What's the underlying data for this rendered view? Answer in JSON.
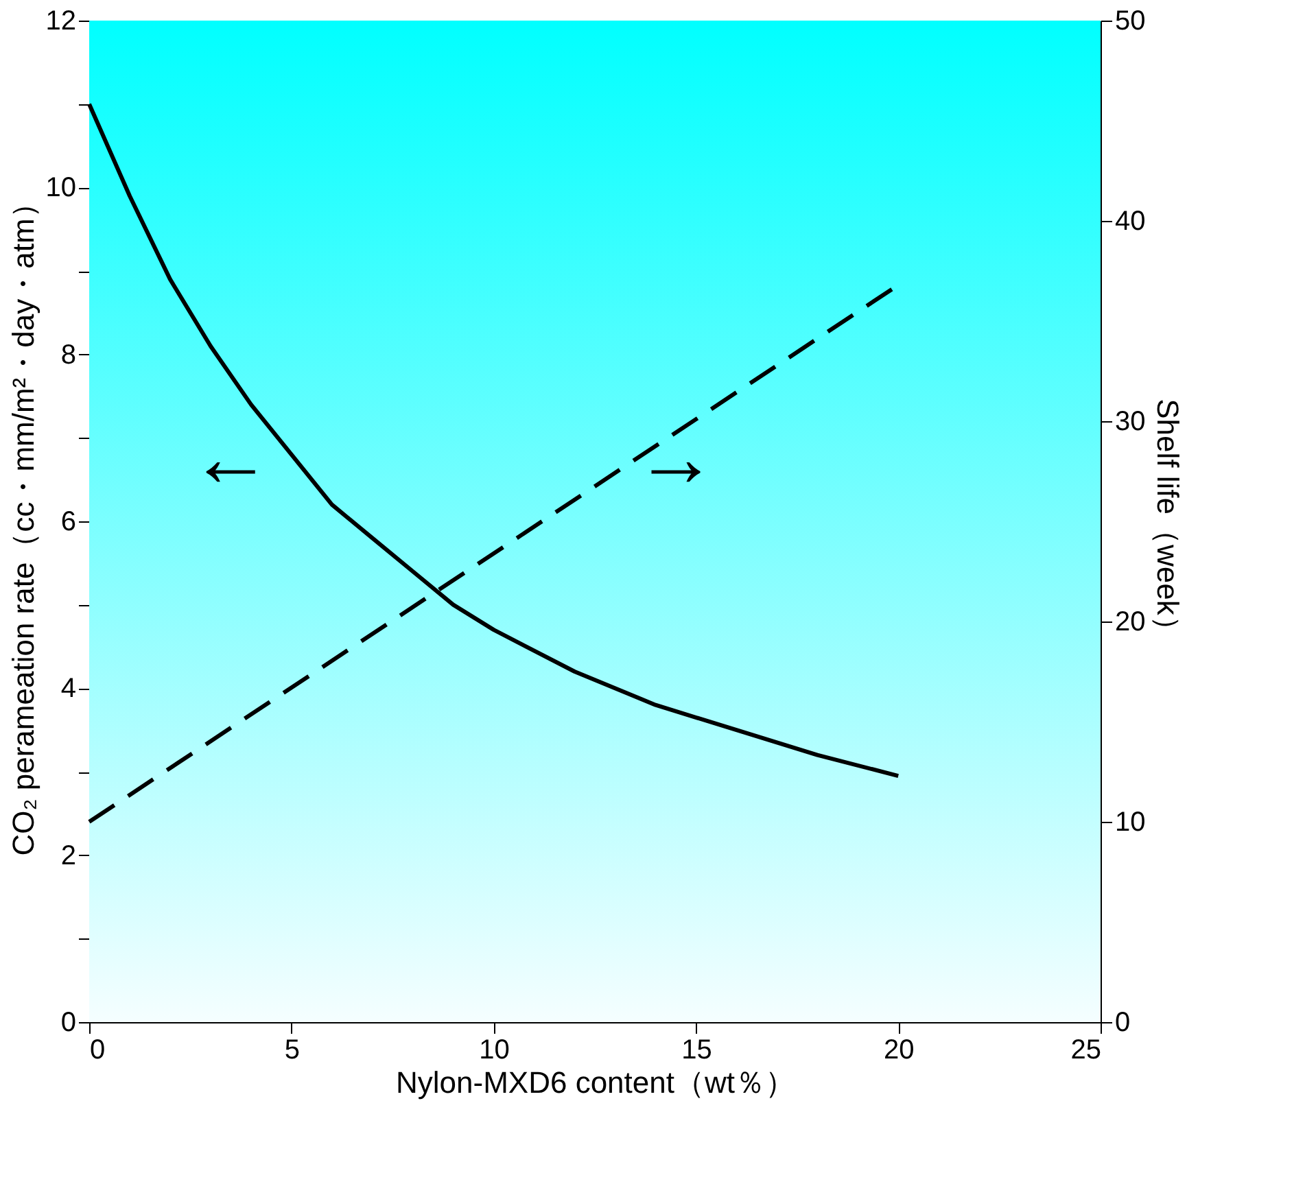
{
  "chart_data": {
    "type": "line",
    "xlabel": "Nylon-MXD6 content（wt％）",
    "ylabel": "CO₂ perameation rate（cc・mm/m²・day・atm）",
    "y2label": "Shelf life（week）",
    "xlim": [
      0,
      25
    ],
    "xticks": [
      0,
      5,
      10,
      15,
      20,
      25
    ],
    "ylim": [
      0,
      12
    ],
    "yticks": [
      0,
      {
        "value": 1,
        "label": null
      },
      2,
      {
        "value": 3,
        "label": null
      },
      4,
      {
        "value": 5,
        "label": null
      },
      6,
      {
        "value": 7,
        "label": null
      },
      8,
      {
        "value": 9,
        "label": null
      },
      10,
      {
        "value": 11,
        "label": null
      },
      12
    ],
    "y2lim": [
      0,
      50
    ],
    "y2ticks": [
      0,
      10,
      20,
      30,
      40,
      50
    ],
    "x": [
      0,
      1,
      2,
      3,
      4,
      5,
      6,
      7,
      8,
      9,
      10,
      12,
      14,
      16,
      18,
      20
    ],
    "series": [
      {
        "color": "#000000",
        "line_style": "solid",
        "values": [
          11.0,
          9.9,
          8.9,
          8.1,
          7.4,
          6.8,
          6.2,
          5.8,
          5.4,
          5.0,
          4.7,
          4.2,
          3.8,
          3.5,
          3.2,
          2.95
        ]
      },
      {
        "color": "#000000",
        "line_style": "dashed",
        "axis": "y2",
        "x": [
          0,
          20
        ],
        "values": [
          10,
          36.8
        ]
      }
    ],
    "annotations": [
      "←",
      "→"
    ],
    "marker": "none"
  }
}
